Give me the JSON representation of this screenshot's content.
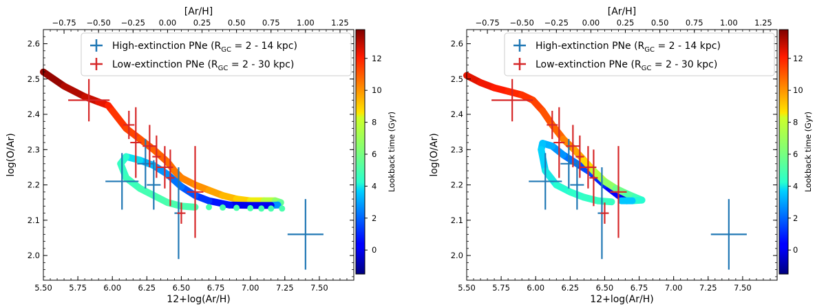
{
  "chart_data": [
    {
      "type": "scatter",
      "panel": "left",
      "xlabel": "12+log(Ar/H)",
      "ylabel": "log(O/Ar)",
      "top_xlabel": "[Ar/H]",
      "xlim": [
        5.5,
        7.75
      ],
      "ylim": [
        1.93,
        2.64
      ],
      "top_xlim": [
        -0.9,
        1.35
      ],
      "x_ticks": [
        5.5,
        5.75,
        6.0,
        6.25,
        6.5,
        6.75,
        7.0,
        7.25,
        7.5
      ],
      "x_tick_labels": [
        "5.50",
        "5.75",
        "6.00",
        "6.25",
        "6.50",
        "6.75",
        "7.00",
        "7.25",
        "7.50"
      ],
      "y_ticks": [
        2.0,
        2.1,
        2.2,
        2.3,
        2.4,
        2.5,
        2.6
      ],
      "y_tick_labels": [
        "2.0",
        "2.1",
        "2.2",
        "2.3",
        "2.4",
        "2.5",
        "2.6"
      ],
      "top_ticks": [
        -0.75,
        -0.5,
        -0.25,
        0.0,
        0.25,
        0.5,
        0.75,
        1.0,
        1.25
      ],
      "top_tick_labels": [
        "−0.75",
        "−0.50",
        "−0.25",
        "0.00",
        "0.25",
        "0.50",
        "0.75",
        "1.00",
        "1.25"
      ],
      "legend_position": "top-right",
      "legend": [
        {
          "label": "High-extinction PNe (R",
          "sub": "GC",
          "label_end": " = 2 - 14 kpc)",
          "color": "#1f77b4"
        },
        {
          "label": "Low-extinction PNe (R",
          "sub": "GC",
          "label_end": " = 2 - 30 kpc)",
          "color": "#d62728"
        }
      ],
      "colorbar": {
        "label": "Lookback time  (Gyr)",
        "range": [
          -1.5,
          13.8
        ],
        "ticks": [
          0,
          2,
          4,
          6,
          8,
          10,
          12
        ],
        "tick_labels": [
          "0",
          "2",
          "4",
          "6",
          "8",
          "10",
          "12"
        ]
      },
      "model_track": [
        {
          "x": 5.5,
          "y": 2.52,
          "t": 13.7
        },
        {
          "x": 5.65,
          "y": 2.48,
          "t": 13.3
        },
        {
          "x": 5.8,
          "y": 2.45,
          "t": 13.0
        },
        {
          "x": 5.9,
          "y": 2.435,
          "t": 12.7
        },
        {
          "x": 5.97,
          "y": 2.425,
          "t": 12.2
        },
        {
          "x": 6.0,
          "y": 2.41,
          "t": 11.8
        },
        {
          "x": 6.1,
          "y": 2.36,
          "t": 11.5
        },
        {
          "x": 6.2,
          "y": 2.33,
          "t": 11.3
        },
        {
          "x": 6.3,
          "y": 2.3,
          "t": 11.0
        },
        {
          "x": 6.4,
          "y": 2.265,
          "t": 10.8
        },
        {
          "x": 6.45,
          "y": 2.24,
          "t": 10.6
        },
        {
          "x": 6.5,
          "y": 2.22,
          "t": 10.4
        },
        {
          "x": 6.6,
          "y": 2.2,
          "t": 10.2
        },
        {
          "x": 6.7,
          "y": 2.185,
          "t": 9.9
        },
        {
          "x": 6.8,
          "y": 2.17,
          "t": 9.6
        },
        {
          "x": 6.9,
          "y": 2.16,
          "t": 9.2
        },
        {
          "x": 7.0,
          "y": 2.155,
          "t": 8.8
        },
        {
          "x": 7.1,
          "y": 2.155,
          "t": 8.2
        },
        {
          "x": 7.18,
          "y": 2.155,
          "t": 7.2
        },
        {
          "x": 7.22,
          "y": 2.15,
          "t": 6.0
        },
        {
          "x": 7.2,
          "y": 2.143,
          "t": 5.0
        },
        {
          "x": 7.15,
          "y": 2.142,
          "t": 0.5
        },
        {
          "x": 7.0,
          "y": 2.142,
          "t": -0.5
        },
        {
          "x": 6.85,
          "y": 2.143,
          "t": 0.4
        },
        {
          "x": 6.7,
          "y": 2.155,
          "t": 1.0
        },
        {
          "x": 6.6,
          "y": 2.17,
          "t": 1.5
        },
        {
          "x": 6.5,
          "y": 2.195,
          "t": 2.0
        },
        {
          "x": 6.4,
          "y": 2.23,
          "t": 2.5
        },
        {
          "x": 6.3,
          "y": 2.255,
          "t": 3.0
        },
        {
          "x": 6.2,
          "y": 2.27,
          "t": 3.6
        },
        {
          "x": 6.1,
          "y": 2.28,
          "t": 4.1
        },
        {
          "x": 6.06,
          "y": 2.26,
          "t": 4.4
        },
        {
          "x": 6.1,
          "y": 2.22,
          "t": 4.6
        },
        {
          "x": 6.2,
          "y": 2.19,
          "t": 4.8
        },
        {
          "x": 6.3,
          "y": 2.17,
          "t": 4.9
        },
        {
          "x": 6.4,
          "y": 2.15,
          "t": 5.0
        },
        {
          "x": 6.5,
          "y": 2.14,
          "t": 5.0
        },
        {
          "x": 6.6,
          "y": 2.137,
          "t": 5.0
        }
      ],
      "model_dots": [
        {
          "x": 6.7,
          "y": 2.137
        },
        {
          "x": 6.8,
          "y": 2.136
        },
        {
          "x": 6.9,
          "y": 2.135
        },
        {
          "x": 7.0,
          "y": 2.134
        },
        {
          "x": 7.08,
          "y": 2.133
        },
        {
          "x": 7.15,
          "y": 2.133
        },
        {
          "x": 7.23,
          "y": 2.133
        }
      ],
      "observations": [
        {
          "group": "high",
          "x": 6.07,
          "y": 2.21,
          "xerr": 0.12,
          "yerr": 0.08
        },
        {
          "group": "high",
          "x": 6.24,
          "y": 2.26,
          "xerr": 0.06,
          "yerr": 0.07
        },
        {
          "group": "high",
          "x": 6.3,
          "y": 2.2,
          "xerr": 0.05,
          "yerr": 0.07
        },
        {
          "group": "high",
          "x": 6.48,
          "y": 2.12,
          "xerr": 0.03,
          "yerr": 0.13
        },
        {
          "group": "high",
          "x": 7.4,
          "y": 2.06,
          "xerr": 0.13,
          "yerr": 0.1
        },
        {
          "group": "low",
          "x": 5.83,
          "y": 2.44,
          "xerr": 0.15,
          "yerr": 0.06
        },
        {
          "group": "low",
          "x": 6.12,
          "y": 2.37,
          "xerr": 0.04,
          "yerr": 0.04
        },
        {
          "group": "low",
          "x": 6.17,
          "y": 2.32,
          "xerr": 0.04,
          "yerr": 0.1
        },
        {
          "group": "low",
          "x": 6.27,
          "y": 2.31,
          "xerr": 0.05,
          "yerr": 0.06
        },
        {
          "group": "low",
          "x": 6.32,
          "y": 2.28,
          "xerr": 0.03,
          "yerr": 0.06
        },
        {
          "group": "low",
          "x": 6.38,
          "y": 2.25,
          "xerr": 0.06,
          "yerr": 0.06
        },
        {
          "group": "low",
          "x": 6.42,
          "y": 2.22,
          "xerr": 0.03,
          "yerr": 0.08
        },
        {
          "group": "low",
          "x": 6.5,
          "y": 2.12,
          "xerr": 0.03,
          "yerr": 0.03
        },
        {
          "group": "low",
          "x": 6.6,
          "y": 2.18,
          "xerr": 0.06,
          "yerr": 0.13
        }
      ]
    },
    {
      "type": "scatter",
      "panel": "right",
      "xlabel": "12+log(Ar/H)",
      "ylabel": "log(O/Ar)",
      "top_xlabel": "[Ar/H]",
      "xlim": [
        5.5,
        7.75
      ],
      "ylim": [
        1.93,
        2.64
      ],
      "top_xlim": [
        -0.9,
        1.35
      ],
      "x_ticks": [
        5.5,
        5.75,
        6.0,
        6.25,
        6.5,
        6.75,
        7.0,
        7.25,
        7.5
      ],
      "x_tick_labels": [
        "5.50",
        "5.75",
        "6.00",
        "6.25",
        "6.50",
        "6.75",
        "7.00",
        "7.25",
        "7.50"
      ],
      "y_ticks": [
        2.0,
        2.1,
        2.2,
        2.3,
        2.4,
        2.5,
        2.6
      ],
      "y_tick_labels": [
        "2.0",
        "2.1",
        "2.2",
        "2.3",
        "2.4",
        "2.5",
        "2.6"
      ],
      "top_ticks": [
        -0.75,
        -0.5,
        -0.25,
        0.0,
        0.25,
        0.5,
        0.75,
        1.0,
        1.25
      ],
      "top_tick_labels": [
        "−0.75",
        "−0.50",
        "−0.25",
        "0.00",
        "0.25",
        "0.50",
        "0.75",
        "1.00",
        "1.25"
      ],
      "legend_position": "top-right",
      "legend": [
        {
          "label": "High-extinction PNe (R",
          "sub": "GC",
          "label_end": " = 2 - 14 kpc)",
          "color": "#1f77b4"
        },
        {
          "label": "Low-extinction PNe (R",
          "sub": "GC",
          "label_end": " = 2 - 30 kpc)",
          "color": "#d62728"
        }
      ],
      "colorbar": {
        "label": "Lookback time  (Gyr)",
        "range": [
          -1.5,
          13.8
        ],
        "ticks": [
          0,
          2,
          4,
          6,
          8,
          10,
          12
        ],
        "tick_labels": [
          "0",
          "2",
          "4",
          "6",
          "8",
          "10",
          "12"
        ]
      },
      "model_track": [
        {
          "x": 5.5,
          "y": 2.51,
          "t": 12.6
        },
        {
          "x": 5.6,
          "y": 2.49,
          "t": 12.4
        },
        {
          "x": 5.7,
          "y": 2.475,
          "t": 12.2
        },
        {
          "x": 5.8,
          "y": 2.465,
          "t": 12.0
        },
        {
          "x": 5.9,
          "y": 2.455,
          "t": 11.8
        },
        {
          "x": 5.98,
          "y": 2.44,
          "t": 11.6
        },
        {
          "x": 6.05,
          "y": 2.41,
          "t": 11.3
        },
        {
          "x": 6.12,
          "y": 2.37,
          "t": 11.0
        },
        {
          "x": 6.2,
          "y": 2.33,
          "t": 10.6
        },
        {
          "x": 6.28,
          "y": 2.3,
          "t": 10.0
        },
        {
          "x": 6.35,
          "y": 2.27,
          "t": 9.3
        },
        {
          "x": 6.42,
          "y": 2.24,
          "t": 8.3
        },
        {
          "x": 6.5,
          "y": 2.21,
          "t": 7.2
        },
        {
          "x": 6.58,
          "y": 2.19,
          "t": 6.2
        },
        {
          "x": 6.66,
          "y": 2.175,
          "t": 5.4
        },
        {
          "x": 6.72,
          "y": 2.165,
          "t": 4.9
        },
        {
          "x": 6.77,
          "y": 2.157,
          "t": 4.5
        },
        {
          "x": 6.7,
          "y": 2.155,
          "t": 3.9
        },
        {
          "x": 6.62,
          "y": 2.155,
          "t": 3.2
        }
      ],
      "model_track_inner": [
        {
          "x": 6.66,
          "y": 2.155,
          "t": -0.5
        },
        {
          "x": 6.6,
          "y": 2.17,
          "t": 0.0
        },
        {
          "x": 6.5,
          "y": 2.2,
          "t": 0.7
        },
        {
          "x": 6.4,
          "y": 2.235,
          "t": 1.3
        },
        {
          "x": 6.3,
          "y": 2.26,
          "t": 1.9
        },
        {
          "x": 6.2,
          "y": 2.285,
          "t": 2.5
        },
        {
          "x": 6.12,
          "y": 2.31,
          "t": 3.0
        },
        {
          "x": 6.05,
          "y": 2.318,
          "t": 3.4
        },
        {
          "x": 6.04,
          "y": 2.3,
          "t": 3.6
        },
        {
          "x": 6.07,
          "y": 2.24,
          "t": 3.9
        },
        {
          "x": 6.15,
          "y": 2.2,
          "t": 4.1
        },
        {
          "x": 6.25,
          "y": 2.18,
          "t": 4.3
        },
        {
          "x": 6.35,
          "y": 2.165,
          "t": 4.4
        },
        {
          "x": 6.45,
          "y": 2.155,
          "t": 4.5
        },
        {
          "x": 6.55,
          "y": 2.152,
          "t": 4.6
        }
      ],
      "observations": [
        {
          "group": "high",
          "x": 6.07,
          "y": 2.21,
          "xerr": 0.12,
          "yerr": 0.08
        },
        {
          "group": "high",
          "x": 6.24,
          "y": 2.26,
          "xerr": 0.06,
          "yerr": 0.07
        },
        {
          "group": "high",
          "x": 6.3,
          "y": 2.2,
          "xerr": 0.05,
          "yerr": 0.07
        },
        {
          "group": "high",
          "x": 6.48,
          "y": 2.12,
          "xerr": 0.03,
          "yerr": 0.13
        },
        {
          "group": "high",
          "x": 7.4,
          "y": 2.06,
          "xerr": 0.13,
          "yerr": 0.1
        },
        {
          "group": "low",
          "x": 5.83,
          "y": 2.44,
          "xerr": 0.15,
          "yerr": 0.06
        },
        {
          "group": "low",
          "x": 6.12,
          "y": 2.37,
          "xerr": 0.04,
          "yerr": 0.04
        },
        {
          "group": "low",
          "x": 6.17,
          "y": 2.32,
          "xerr": 0.04,
          "yerr": 0.1
        },
        {
          "group": "low",
          "x": 6.27,
          "y": 2.31,
          "xerr": 0.05,
          "yerr": 0.06
        },
        {
          "group": "low",
          "x": 6.32,
          "y": 2.28,
          "xerr": 0.03,
          "yerr": 0.06
        },
        {
          "group": "low",
          "x": 6.38,
          "y": 2.25,
          "xerr": 0.06,
          "yerr": 0.06
        },
        {
          "group": "low",
          "x": 6.42,
          "y": 2.22,
          "xerr": 0.03,
          "yerr": 0.08
        },
        {
          "group": "low",
          "x": 6.5,
          "y": 2.12,
          "xerr": 0.03,
          "yerr": 0.03
        },
        {
          "group": "low",
          "x": 6.6,
          "y": 2.18,
          "xerr": 0.06,
          "yerr": 0.13
        }
      ]
    }
  ]
}
